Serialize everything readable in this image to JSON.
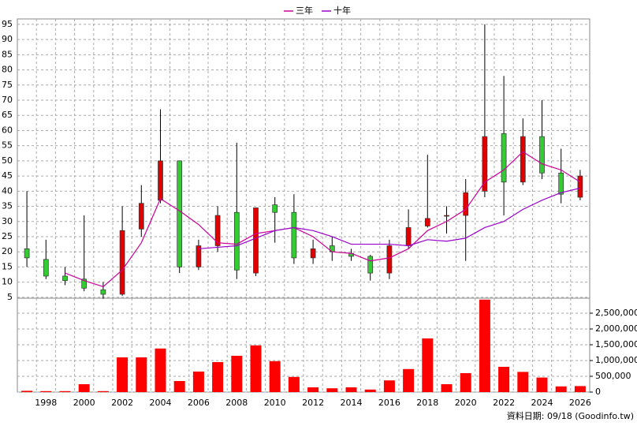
{
  "chart_data": [
    {
      "type": "candlestick",
      "legend": "top",
      "grid": true,
      "up_color": "#e00000",
      "down_color": "#33cc33",
      "open": [
        21,
        17.5,
        12,
        11,
        7.5,
        6,
        27.5,
        37,
        50,
        15,
        22,
        33,
        13,
        35.5,
        33,
        18,
        22,
        19.5,
        18.5,
        13,
        22,
        28.5,
        32,
        32,
        40,
        59,
        43,
        58,
        46,
        38
      ],
      "high": [
        40,
        24,
        15,
        32,
        10,
        35,
        42,
        67,
        50,
        24,
        35,
        56,
        34.5,
        38,
        39,
        24,
        25,
        21,
        19,
        24,
        34,
        52,
        35,
        44,
        95,
        78,
        64,
        70,
        54,
        47
      ],
      "low": [
        15,
        11,
        9,
        7,
        4.5,
        5.5,
        25,
        36,
        13,
        14,
        20,
        11,
        12,
        23,
        16,
        16,
        17,
        17,
        10.5,
        11,
        21,
        28,
        26,
        17,
        38,
        32,
        42,
        44,
        36,
        37
      ],
      "close": [
        18,
        12,
        10.5,
        8,
        6,
        27,
        36,
        50,
        15,
        22,
        32,
        14,
        34.5,
        33,
        18,
        21,
        20,
        18.5,
        13,
        22,
        28,
        31,
        32,
        39.5,
        58,
        43,
        58,
        46,
        39,
        45
      ],
      "series": [
        {
          "name": "三年",
          "color": "#cc0099",
          "values": [
            null,
            null,
            13,
            10.5,
            8.5,
            14,
            23,
            37.5,
            33.5,
            29,
            23,
            22.5,
            26,
            27,
            28,
            25,
            20,
            19.5,
            17,
            18,
            21,
            27,
            30,
            34,
            43,
            47,
            53,
            49,
            47,
            43
          ]
        },
        {
          "name": "十年",
          "color": "#9900cc",
          "values": [
            null,
            null,
            null,
            null,
            null,
            null,
            null,
            null,
            null,
            21,
            21.5,
            22,
            24.5,
            27,
            28,
            27,
            25,
            22.5,
            22.5,
            22.5,
            22,
            24,
            23.5,
            24.5,
            28,
            30,
            34,
            37,
            39.5,
            41
          ]
        }
      ],
      "ylim": [
        4.7,
        96.8
      ],
      "yticks": [
        5,
        10,
        15,
        20,
        25,
        30,
        35,
        40,
        45,
        50,
        55,
        60,
        65,
        70,
        75,
        80,
        85,
        90,
        95
      ]
    },
    {
      "type": "bar",
      "color": "#ff0000",
      "categories": [
        null,
        "1998",
        null,
        "2000",
        null,
        "2002",
        null,
        "2004",
        null,
        "2006",
        null,
        "2008",
        null,
        "2010",
        null,
        "2012",
        null,
        "2014",
        null,
        "2016",
        null,
        "2018",
        null,
        "2020",
        null,
        "2022",
        null,
        "2024",
        null,
        "2026"
      ],
      "values": [
        40000,
        30000,
        30000,
        250000,
        30000,
        1100000,
        1100000,
        1380000,
        350000,
        650000,
        950000,
        1150000,
        1480000,
        980000,
        480000,
        150000,
        120000,
        150000,
        80000,
        370000,
        730000,
        1700000,
        250000,
        600000,
        2930000,
        800000,
        640000,
        460000,
        180000,
        190000
      ],
      "ylim": [
        0,
        2975000
      ],
      "yticks": [
        0,
        {
          "value": 500000,
          "label": "500,000"
        },
        {
          "value": 1000000,
          "label": "1,000,000"
        },
        {
          "value": 1500000,
          "label": "1,500,000"
        },
        {
          "value": 2000000,
          "label": "2,000,000"
        },
        {
          "value": 2500000,
          "label": "2,500,000"
        }
      ],
      "grid": true
    }
  ],
  "footer": "資料日期: 09/18  (Goodinfo.tw)"
}
